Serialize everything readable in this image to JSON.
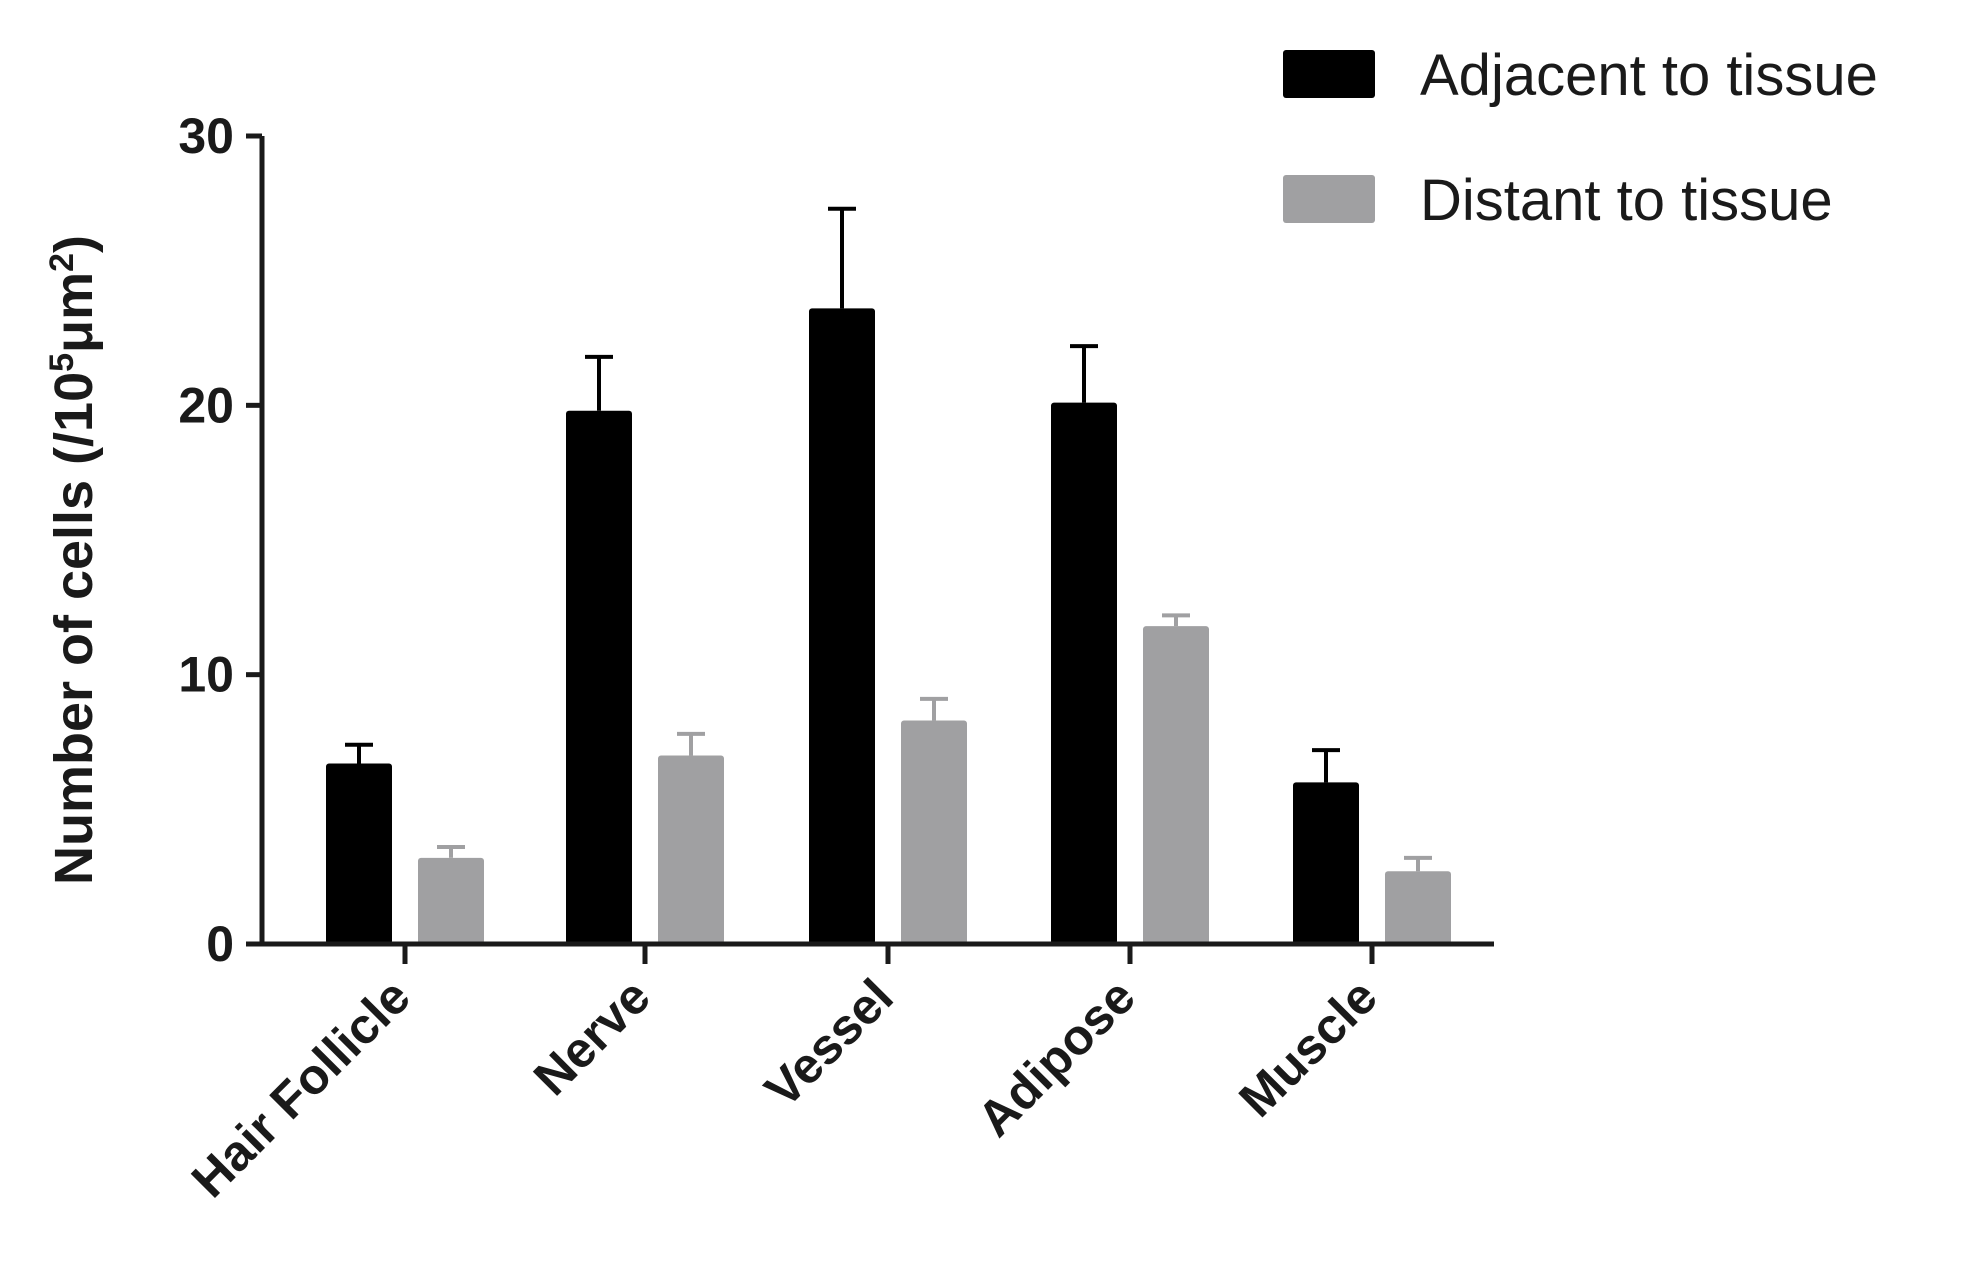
{
  "chart_data": {
    "type": "bar",
    "categories": [
      "Hair Follicle",
      "Nerve",
      "Vessel",
      "Adipose",
      "Muscle"
    ],
    "series": [
      {
        "name": "Adjacent to tissue",
        "color": "#000000",
        "values": [
          6.7,
          19.8,
          23.6,
          20.1,
          6.0
        ],
        "errors": [
          0.7,
          2.0,
          3.7,
          2.1,
          1.2
        ]
      },
      {
        "name": "Distant to tissue",
        "color": "#a0a0a2",
        "values": [
          3.2,
          7.0,
          8.3,
          11.8,
          2.7
        ],
        "errors": [
          0.4,
          0.8,
          0.8,
          0.4,
          0.5
        ]
      }
    ],
    "ylabel_main": "Number of cells (/10",
    "ylabel_sup1": "5",
    "ylabel_mid": "μm",
    "ylabel_sup2": "2",
    "ylabel_end": ")",
    "ylim": [
      0,
      30
    ],
    "yticks": [
      "0",
      "10",
      "20",
      "30"
    ],
    "legend_position": "top-right",
    "grid": false
  }
}
